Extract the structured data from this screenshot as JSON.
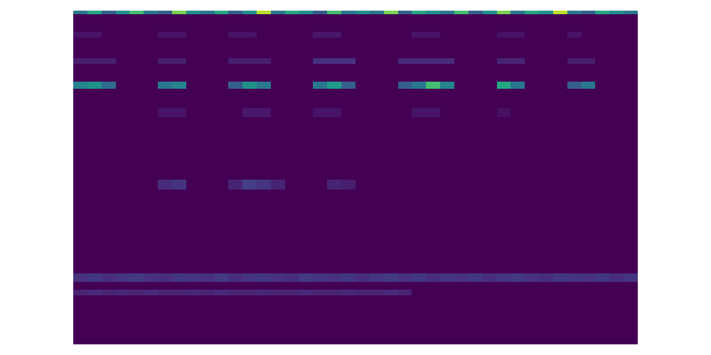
{
  "chart_data": {
    "type": "heatmap",
    "color": "Viridis",
    "tick_labels": false,
    "xlim": [
      0,
      40
    ],
    "ylim": [
      0,
      470
    ],
    "zlim": [
      0,
      1
    ],
    "x": [
      0,
      1,
      2,
      3,
      4,
      5,
      6,
      7,
      8,
      9,
      10,
      11,
      12,
      13,
      14,
      15,
      16,
      17,
      18,
      19,
      20,
      21,
      22,
      23,
      24,
      25,
      26,
      27,
      28,
      29,
      30,
      31,
      32,
      33,
      34,
      35,
      36,
      37,
      38,
      39,
      40
    ],
    "y": [
      0,
      69,
      77,
      88,
      100,
      218,
      232,
      320,
      333,
      360,
      370,
      395,
      403,
      432,
      440,
      465,
      470
    ],
    "z": [
      [
        0,
        0,
        0,
        0,
        0,
        0,
        0,
        0,
        0,
        0,
        0,
        0,
        0,
        0,
        0,
        0,
        0,
        0,
        0,
        0,
        0,
        0,
        0,
        0,
        0,
        0,
        0,
        0,
        0,
        0,
        0,
        0,
        0,
        0,
        0,
        0,
        0,
        0,
        0,
        0
      ],
      [
        0.1,
        0.12,
        0.1,
        0.11,
        0.1,
        0.12,
        0.1,
        0.1,
        0.11,
        0.1,
        0.12,
        0.1,
        0.1,
        0.11,
        0.1,
        0.1,
        0.12,
        0.1,
        0.1,
        0.11,
        0.1,
        0.1,
        0.12,
        0.1,
        0,
        0,
        0,
        0,
        0,
        0,
        0,
        0,
        0,
        0,
        0,
        0,
        0,
        0,
        0,
        0
      ],
      [
        0,
        0,
        0,
        0,
        0,
        0,
        0,
        0,
        0,
        0,
        0,
        0,
        0,
        0,
        0,
        0,
        0,
        0,
        0,
        0,
        0,
        0,
        0,
        0,
        0,
        0,
        0,
        0,
        0,
        0,
        0,
        0,
        0,
        0,
        0,
        0,
        0,
        0,
        0,
        0
      ],
      [
        0.14,
        0.16,
        0.13,
        0.15,
        0.17,
        0.14,
        0.13,
        0.16,
        0.15,
        0.14,
        0.17,
        0.13,
        0.15,
        0.16,
        0.14,
        0.13,
        0.17,
        0.15,
        0.14,
        0.16,
        0.13,
        0.15,
        0.17,
        0.14,
        0.16,
        0.13,
        0.15,
        0.14,
        0.16,
        0.13,
        0.15,
        0.17,
        0.14,
        0.13,
        0.16,
        0.15,
        0.14,
        0.16,
        0.13,
        0.15
      ],
      [
        0,
        0,
        0,
        0,
        0,
        0,
        0,
        0,
        0,
        0,
        0,
        0,
        0,
        0,
        0,
        0,
        0,
        0,
        0,
        0,
        0,
        0,
        0,
        0,
        0,
        0,
        0,
        0,
        0,
        0,
        0,
        0,
        0,
        0,
        0,
        0,
        0,
        0,
        0,
        0
      ],
      [
        0,
        0,
        0,
        0,
        0,
        0,
        0.12,
        0.15,
        0,
        0,
        0,
        0.1,
        0.18,
        0.15,
        0.1,
        0,
        0,
        0,
        0.1,
        0.08,
        0,
        0,
        0,
        0,
        0,
        0,
        0,
        0,
        0,
        0,
        0,
        0,
        0,
        0,
        0,
        0,
        0,
        0,
        0,
        0
      ],
      [
        0,
        0,
        0,
        0,
        0,
        0,
        0,
        0,
        0,
        0,
        0,
        0,
        0,
        0,
        0,
        0,
        0,
        0,
        0,
        0,
        0,
        0,
        0,
        0,
        0,
        0,
        0,
        0,
        0,
        0,
        0,
        0,
        0,
        0,
        0,
        0,
        0,
        0,
        0,
        0
      ],
      [
        0,
        0,
        0,
        0,
        0,
        0,
        0.05,
        0.05,
        0,
        0,
        0,
        0,
        0.06,
        0.06,
        0,
        0,
        0,
        0.05,
        0.05,
        0,
        0,
        0,
        0,
        0,
        0.05,
        0.05,
        0,
        0,
        0,
        0,
        0.04,
        0,
        0,
        0,
        0,
        0,
        0,
        0,
        0,
        0
      ],
      [
        0,
        0,
        0,
        0,
        0,
        0,
        0,
        0,
        0,
        0,
        0,
        0,
        0,
        0,
        0,
        0,
        0,
        0,
        0,
        0,
        0,
        0,
        0,
        0,
        0,
        0,
        0,
        0,
        0,
        0,
        0,
        0,
        0,
        0,
        0,
        0,
        0,
        0,
        0,
        0
      ],
      [
        0.45,
        0.5,
        0.35,
        0,
        0,
        0,
        0.4,
        0.45,
        0,
        0,
        0,
        0.3,
        0.5,
        0.4,
        0,
        0,
        0,
        0.4,
        0.55,
        0.3,
        0,
        0,
        0,
        0.3,
        0.4,
        0.7,
        0.45,
        0,
        0,
        0,
        0.6,
        0.4,
        0,
        0,
        0,
        0.3,
        0.4,
        0,
        0,
        0
      ],
      [
        0,
        0,
        0,
        0,
        0,
        0,
        0,
        0,
        0,
        0,
        0,
        0,
        0,
        0,
        0,
        0,
        0,
        0,
        0,
        0,
        0,
        0,
        0,
        0,
        0,
        0,
        0,
        0,
        0,
        0,
        0,
        0,
        0,
        0,
        0,
        0,
        0,
        0,
        0,
        0
      ],
      [
        0.08,
        0.08,
        0.08,
        0,
        0,
        0,
        0.08,
        0.08,
        0,
        0,
        0,
        0.08,
        0.08,
        0.08,
        0,
        0,
        0,
        0.14,
        0.14,
        0.14,
        0,
        0,
        0,
        0.12,
        0.12,
        0.12,
        0.12,
        0,
        0,
        0,
        0.1,
        0.1,
        0,
        0,
        0,
        0.08,
        0.08,
        0,
        0,
        0
      ],
      [
        0,
        0,
        0,
        0,
        0,
        0,
        0,
        0,
        0,
        0,
        0,
        0,
        0,
        0,
        0,
        0,
        0,
        0,
        0,
        0,
        0,
        0,
        0,
        0,
        0,
        0,
        0,
        0,
        0,
        0,
        0,
        0,
        0,
        0,
        0,
        0,
        0,
        0,
        0,
        0
      ],
      [
        0.05,
        0.05,
        0,
        0,
        0,
        0,
        0.05,
        0.05,
        0,
        0,
        0,
        0.05,
        0.05,
        0,
        0,
        0,
        0,
        0.06,
        0.06,
        0,
        0,
        0,
        0,
        0,
        0.05,
        0.05,
        0,
        0,
        0,
        0,
        0.05,
        0.05,
        0,
        0,
        0,
        0.05,
        0,
        0,
        0,
        0
      ],
      [
        0,
        0,
        0,
        0,
        0,
        0,
        0,
        0,
        0,
        0,
        0,
        0,
        0,
        0,
        0,
        0,
        0,
        0,
        0,
        0,
        0,
        0,
        0,
        0,
        0,
        0,
        0,
        0,
        0,
        0,
        0,
        0,
        0,
        0,
        0,
        0,
        0,
        0,
        0,
        0
      ],
      [
        0.4,
        0.6,
        0.3,
        0.5,
        0.7,
        0.4,
        0.3,
        0.8,
        0.5,
        0.4,
        0.6,
        0.3,
        0.5,
        0.9,
        0.4,
        0.6,
        0.5,
        0.3,
        0.7,
        0.4,
        0.5,
        0.4,
        0.8,
        0.3,
        0.6,
        0.5,
        0.4,
        0.7,
        0.3,
        0.5,
        0.8,
        0.4,
        0.6,
        0.5,
        0.9,
        0.4,
        0.3,
        0.6,
        0.5,
        0.4
      ]
    ]
  }
}
